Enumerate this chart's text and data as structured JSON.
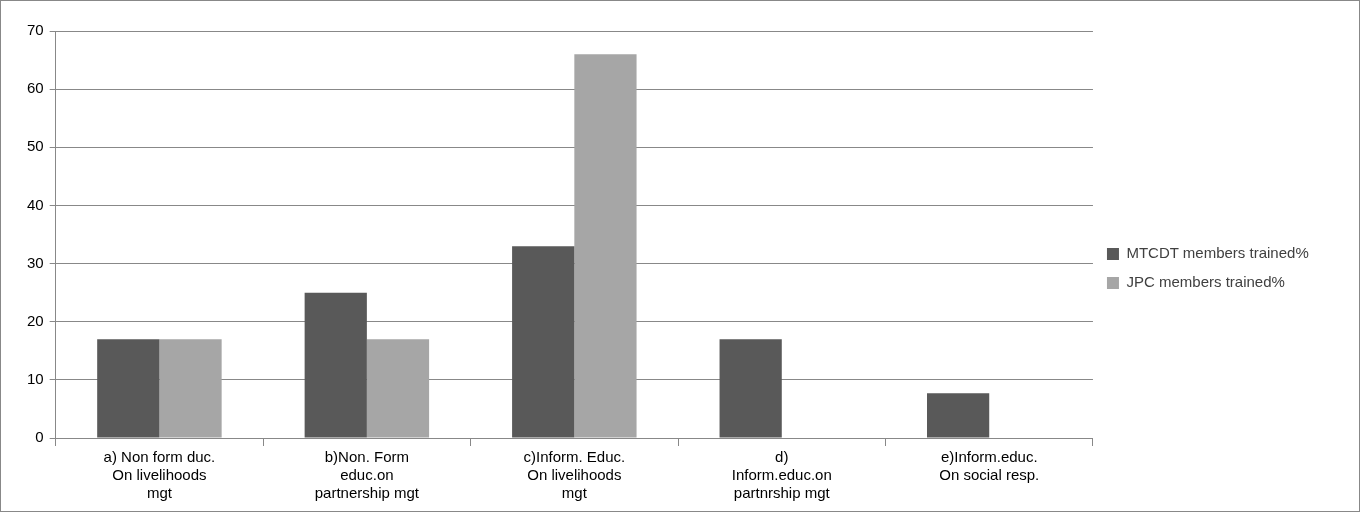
{
  "chart_data": {
    "type": "bar",
    "categories": [
      "a) Non form duc. On livelihoods mgt",
      "b)Non. Form educ.on partnership mgt",
      "c)Inform. Educ. On livelihoods mgt",
      "d) Inform.educ.on partnrship mgt",
      "e)Inform.educ. On social resp."
    ],
    "series": [
      {
        "name": "MTCDT members trained%",
        "color": "#595959",
        "values": [
          17,
          25,
          33,
          17,
          7.7
        ]
      },
      {
        "name": "JPC members trained%",
        "color": "#a6a6a6",
        "values": [
          17,
          17,
          66,
          0,
          0
        ]
      }
    ],
    "ylim": [
      0,
      70
    ],
    "yticks": [
      0,
      10,
      20,
      30,
      40,
      50,
      60,
      70
    ],
    "grid": "y",
    "legend": "right"
  }
}
